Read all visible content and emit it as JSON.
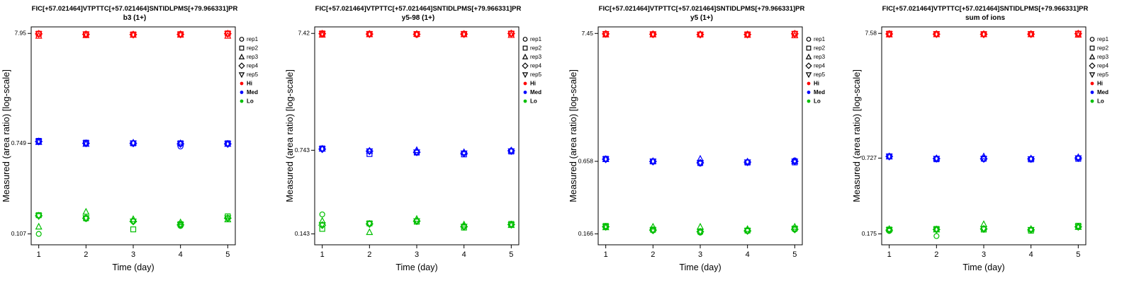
{
  "chart_data": {
    "type": "scatter",
    "title": "FIC[+57.021464]VTPTTC[+57.021464]SNTIDLPMS[+79.966331]PR",
    "xlabel": "Time (day)",
    "ylabel": "Measured (area ratio) [log-scale]",
    "x_ticks": [
      1,
      2,
      3,
      4,
      5
    ],
    "xlim": [
      0.84,
      5.16
    ],
    "yscale": "log",
    "grid": false,
    "legend_position": "right",
    "reps": [
      {
        "label": "rep1",
        "marker": "circle"
      },
      {
        "label": "rep2",
        "marker": "square"
      },
      {
        "label": "rep3",
        "marker": "triangle-up"
      },
      {
        "label": "rep4",
        "marker": "diamond"
      },
      {
        "label": "rep5",
        "marker": "triangle-down"
      }
    ],
    "levels": [
      {
        "label": "Hi",
        "color": "#FF0000"
      },
      {
        "label": "Med",
        "color": "#0000FF"
      },
      {
        "label": "Lo",
        "color": "#00BF00"
      }
    ],
    "panels": [
      {
        "subtitle": "b3 (1+)",
        "y_ticks": [
          7.95,
          0.749,
          0.107
        ],
        "ylim": [
          0.0847,
          9.15
        ],
        "series": {
          "Hi": [
            [
              7.85,
              7.9,
              7.55,
              7.88,
              7.86
            ],
            [
              7.8,
              7.82,
              7.65,
              7.8,
              7.8
            ],
            [
              7.75,
              7.78,
              7.7,
              7.76,
              7.74
            ],
            [
              7.8,
              7.82,
              7.72,
              7.8,
              7.78
            ],
            [
              7.9,
              7.95,
              7.55,
              7.9,
              7.88
            ]
          ],
          "Med": [
            [
              0.78,
              0.79,
              0.77,
              0.78,
              0.78
            ],
            [
              0.75,
              0.76,
              0.74,
              0.75,
              0.75
            ],
            [
              0.75,
              0.75,
              0.76,
              0.75,
              0.75
            ],
            [
              0.7,
              0.75,
              0.75,
              0.74,
              0.74
            ],
            [
              0.74,
              0.75,
              0.74,
              0.74,
              0.74
            ]
          ],
          "Lo": [
            [
              0.107,
              0.16,
              0.125,
              0.158,
              0.157
            ],
            [
              0.148,
              0.15,
              0.172,
              0.15,
              0.15
            ],
            [
              0.14,
              0.118,
              0.147,
              0.14,
              0.14
            ],
            [
              0.127,
              0.132,
              0.137,
              0.13,
              0.13
            ],
            [
              0.15,
              0.156,
              0.146,
              0.15,
              0.15
            ]
          ]
        }
      },
      {
        "subtitle": "y5-98 (1+)",
        "y_ticks": [
          7.42,
          0.743,
          0.143
        ],
        "ylim": [
          0.1154,
          8.44
        ],
        "series": {
          "Hi": [
            [
              7.3,
              7.42,
              7.22,
              7.38,
              7.36
            ],
            [
              7.32,
              7.35,
              7.28,
              7.33,
              7.33
            ],
            [
              7.22,
              7.33,
              7.33,
              7.3,
              7.3
            ],
            [
              7.33,
              7.35,
              7.28,
              7.33,
              7.33
            ],
            [
              7.42,
              7.4,
              7.18,
              7.4,
              7.38
            ]
          ],
          "Med": [
            [
              0.76,
              0.77,
              0.765,
              0.76,
              0.76
            ],
            [
              0.73,
              0.69,
              0.735,
              0.73,
              0.73
            ],
            [
              0.71,
              0.71,
              0.745,
              0.715,
              0.715
            ],
            [
              0.7,
              0.685,
              0.715,
              0.7,
              0.7
            ],
            [
              0.735,
              0.725,
              0.74,
              0.735,
              0.73
            ]
          ],
          "Lo": [
            [
              0.21,
              0.158,
              0.185,
              0.17,
              0.17
            ],
            [
              0.175,
              0.176,
              0.148,
              0.174,
              0.174
            ],
            [
              0.185,
              0.182,
              0.192,
              0.184,
              0.184
            ],
            [
              0.165,
              0.162,
              0.172,
              0.165,
              0.165
            ],
            [
              0.172,
              0.174,
              0.17,
              0.172,
              0.171
            ]
          ]
        }
      },
      {
        "subtitle": "y5 (1+)",
        "y_ticks": [
          7.45,
          0.658,
          0.166
        ],
        "ylim": [
          0.135,
          8.44
        ],
        "series": {
          "Hi": [
            [
              7.4,
              7.38,
              7.28,
              7.39,
              7.38
            ],
            [
              7.33,
              7.35,
              7.3,
              7.34,
              7.33
            ],
            [
              7.3,
              7.3,
              7.32,
              7.3,
              7.3
            ],
            [
              7.3,
              7.32,
              7.24,
              7.3,
              7.3
            ],
            [
              7.45,
              7.4,
              7.18,
              7.4,
              7.4
            ]
          ],
          "Med": [
            [
              0.685,
              0.69,
              0.685,
              0.685,
              0.685
            ],
            [
              0.655,
              0.657,
              0.66,
              0.656,
              0.656
            ],
            [
              0.63,
              0.638,
              0.69,
              0.64,
              0.64
            ],
            [
              0.648,
              0.643,
              0.655,
              0.648,
              0.647
            ],
            [
              0.67,
              0.645,
              0.66,
              0.658,
              0.657
            ]
          ],
          "Lo": [
            [
              0.19,
              0.193,
              0.188,
              0.19,
              0.19
            ],
            [
              0.177,
              0.18,
              0.19,
              0.178,
              0.178
            ],
            [
              0.17,
              0.174,
              0.19,
              0.173,
              0.173
            ],
            [
              0.175,
              0.177,
              0.182,
              0.176,
              0.176
            ],
            [
              0.18,
              0.184,
              0.19,
              0.181,
              0.181
            ]
          ]
        }
      },
      {
        "subtitle": "sum of ions",
        "y_ticks": [
          7.58,
          0.727,
          0.175
        ],
        "ylim": [
          0.1426,
          8.57
        ],
        "series": {
          "Hi": [
            [
              7.5,
              7.54,
              7.42,
              7.5,
              7.5
            ],
            [
              7.48,
              7.5,
              7.44,
              7.48,
              7.48
            ],
            [
              7.44,
              7.48,
              7.46,
              7.46,
              7.46
            ],
            [
              7.48,
              7.5,
              7.44,
              7.48,
              7.48
            ],
            [
              7.58,
              7.54,
              7.38,
              7.54,
              7.53
            ]
          ],
          "Med": [
            [
              0.75,
              0.752,
              0.748,
              0.75,
              0.75
            ],
            [
              0.72,
              0.712,
              0.724,
              0.72,
              0.72
            ],
            [
              0.712,
              0.72,
              0.75,
              0.718,
              0.717
            ],
            [
              0.716,
              0.71,
              0.722,
              0.716,
              0.715
            ],
            [
              0.73,
              0.718,
              0.74,
              0.728,
              0.727
            ]
          ],
          "Lo": [
            [
              0.185,
              0.19,
              0.192,
              0.188,
              0.188
            ],
            [
              0.168,
              0.192,
              0.19,
              0.19,
              0.19
            ],
            [
              0.194,
              0.19,
              0.21,
              0.192,
              0.192
            ],
            [
              0.19,
              0.186,
              0.192,
              0.189,
              0.189
            ],
            [
              0.2,
              0.204,
              0.199,
              0.2,
              0.2
            ]
          ]
        }
      }
    ]
  }
}
